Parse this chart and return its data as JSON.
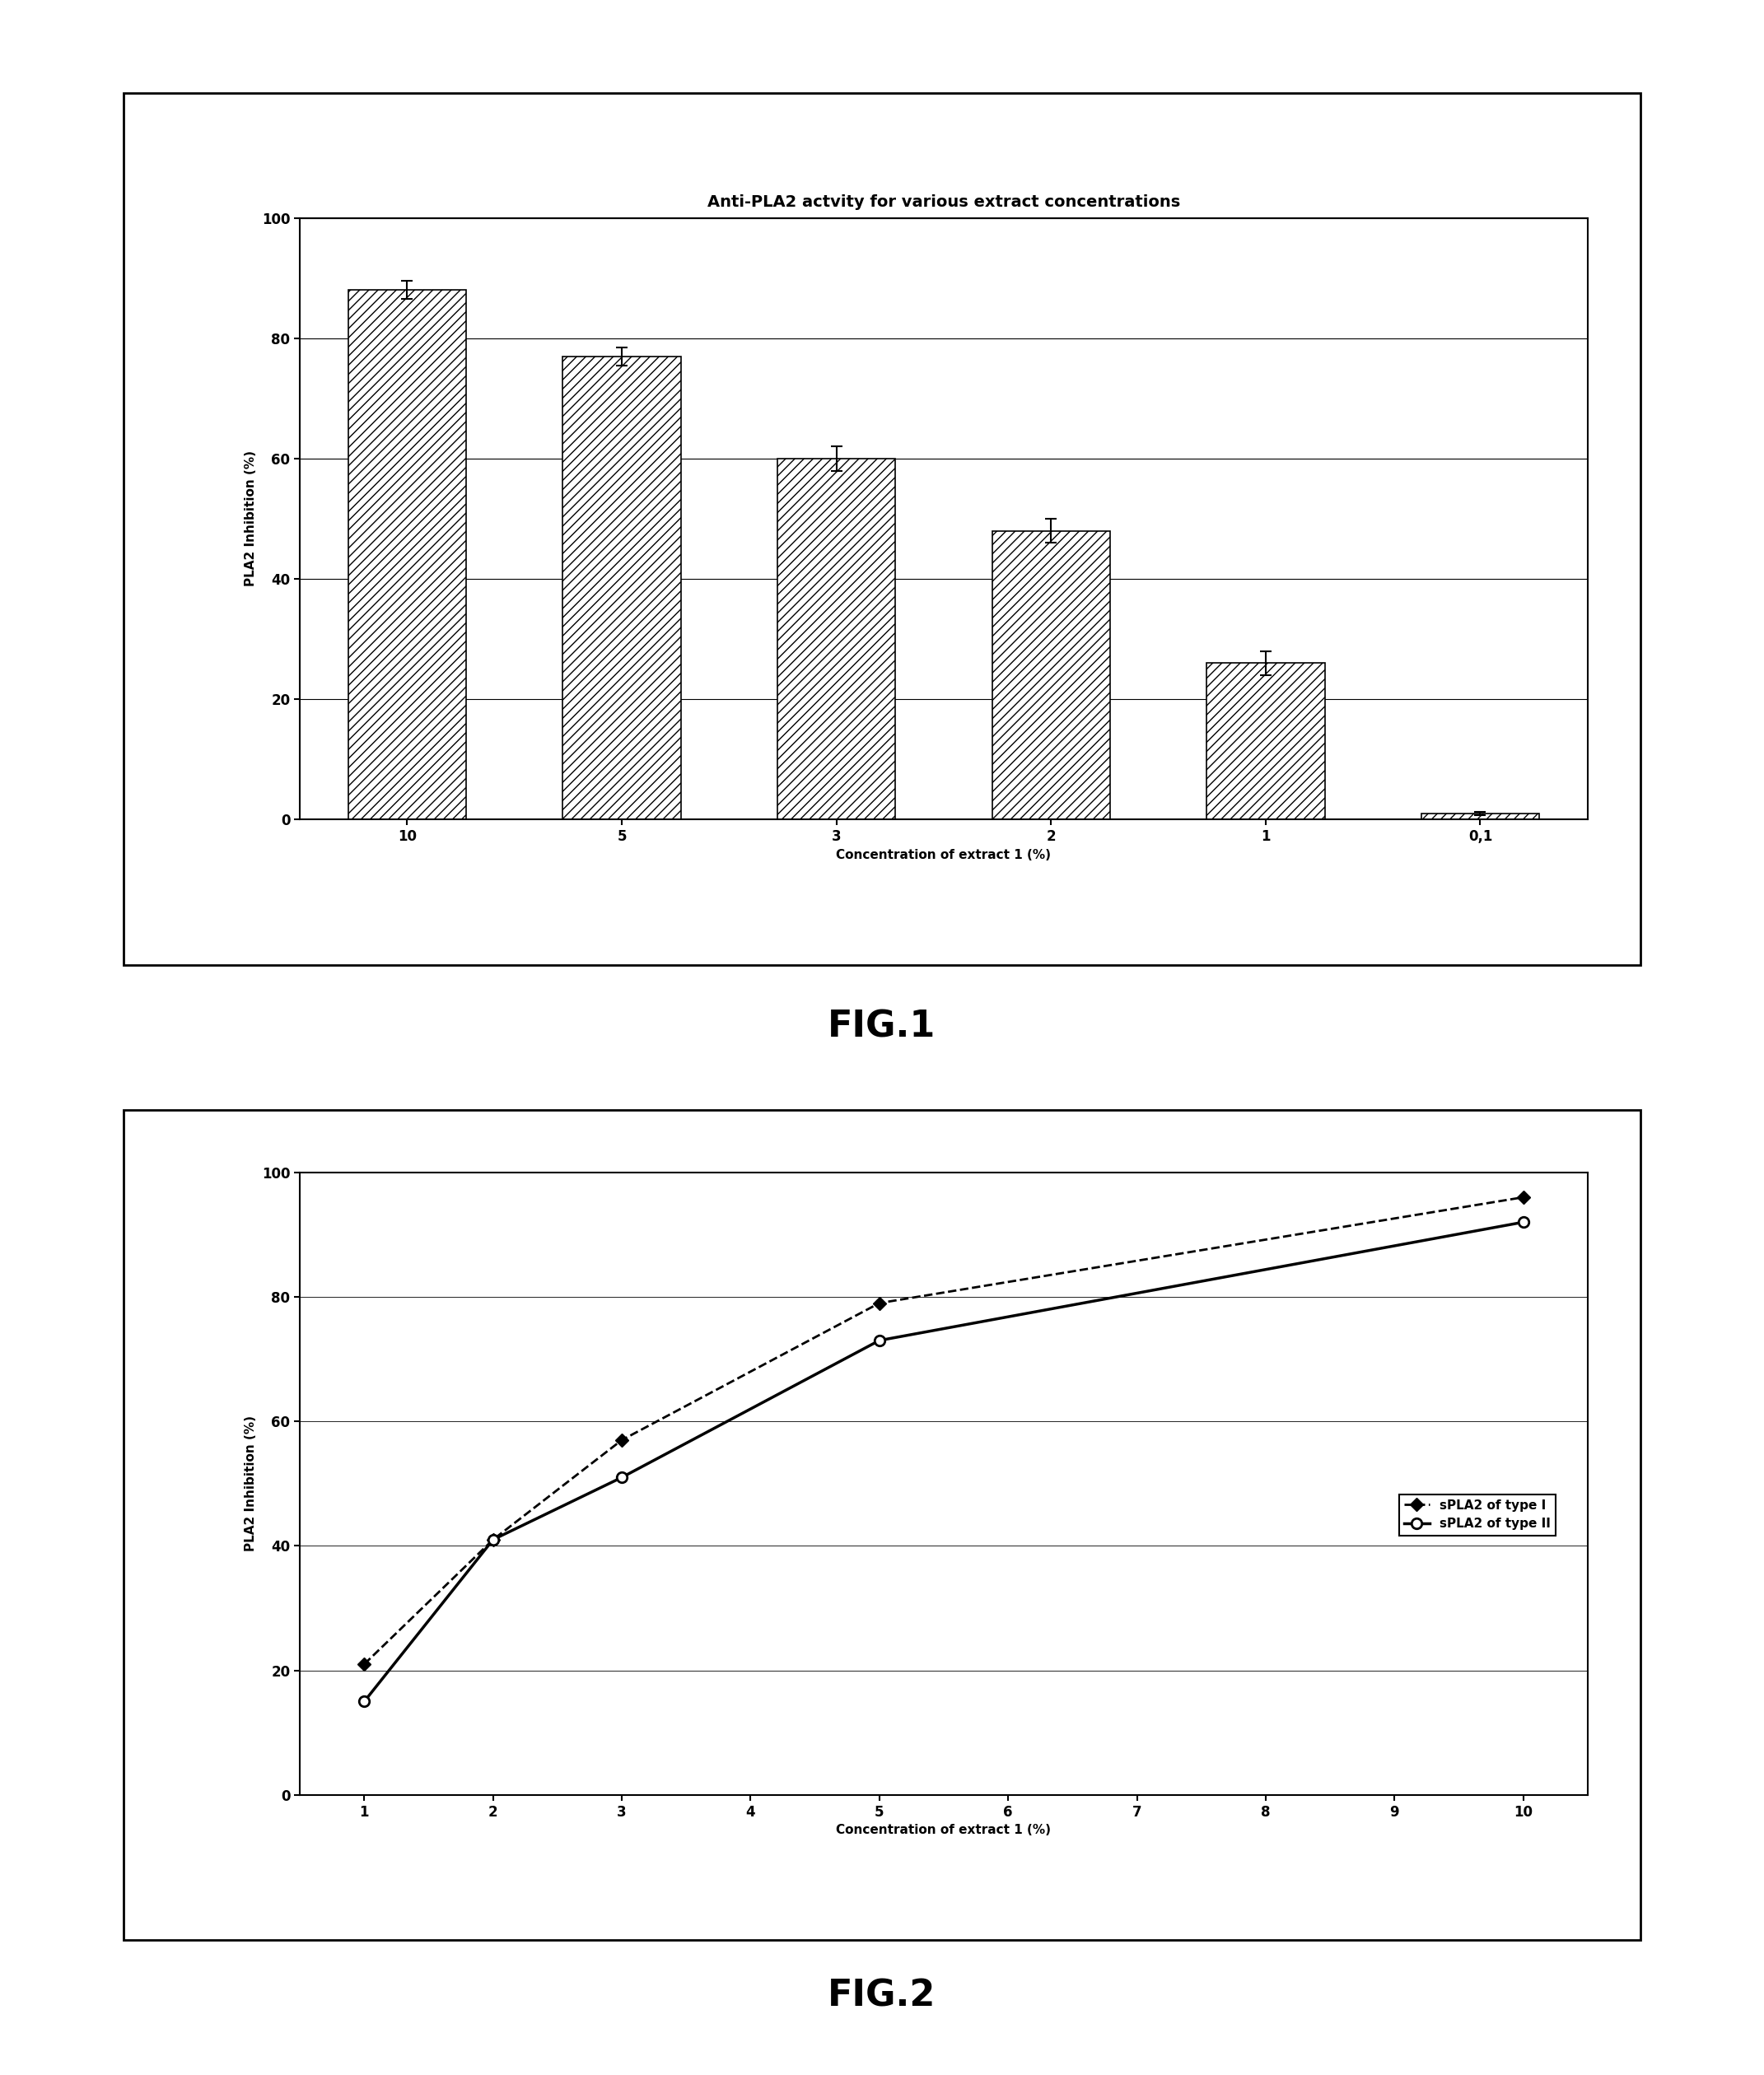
{
  "fig1": {
    "title": "Anti-PLA2 actvity for various extract concentrations",
    "xlabel": "Concentration of extract 1 (%)",
    "ylabel": "PLA2 Inhibition (%)",
    "categories": [
      "10",
      "5",
      "3",
      "2",
      "1",
      "0,1"
    ],
    "values": [
      88,
      77,
      60,
      48,
      26,
      1
    ],
    "errors": [
      1.5,
      1.5,
      2.0,
      2.0,
      2.0,
      0.3
    ],
    "ylim": [
      0,
      100
    ],
    "yticks": [
      0,
      20,
      40,
      60,
      80,
      100
    ],
    "fig_label": "FIG.1"
  },
  "fig2": {
    "xlabel": "Concentration of extract 1 (%)",
    "ylabel": "PLA2 Inhibition (%)",
    "xticks": [
      1,
      2,
      3,
      4,
      5,
      6,
      7,
      8,
      9,
      10
    ],
    "ylim": [
      0,
      100
    ],
    "yticks": [
      0,
      20,
      40,
      60,
      80,
      100
    ],
    "type1_x": [
      1,
      2,
      3,
      5,
      10
    ],
    "type1_y": [
      21,
      41,
      57,
      79,
      96
    ],
    "type2_x": [
      1,
      2,
      3,
      5,
      10
    ],
    "type2_y": [
      15,
      41,
      51,
      73,
      92
    ],
    "legend_type1": "sPLA2 of type I",
    "legend_type2": "sPLA2 of type II",
    "fig_label": "FIG.2"
  },
  "background_color": "#ffffff",
  "bar_hatch": "///",
  "bar_facecolor": "#ffffff",
  "bar_edgecolor": "#000000"
}
